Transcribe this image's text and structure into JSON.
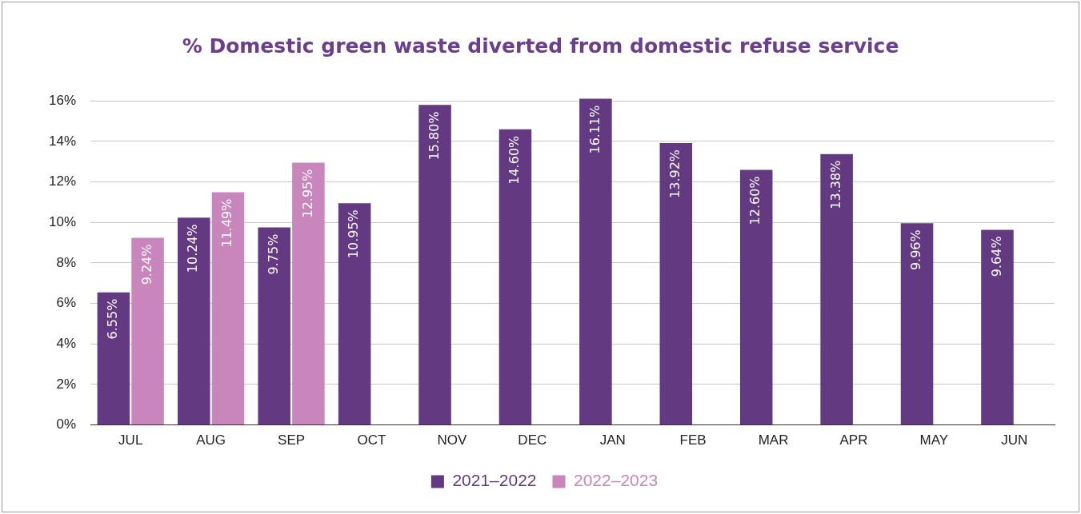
{
  "chart_data": {
    "type": "bar",
    "title": "% Domestic green waste diverted from domestic refuse service",
    "categories": [
      "JUL",
      "AUG",
      "SEP",
      "OCT",
      "NOV",
      "DEC",
      "JAN",
      "FEB",
      "MAR",
      "APR",
      "MAY",
      "JUN"
    ],
    "series": [
      {
        "name": "2021–2022",
        "color": "#633a82",
        "values": [
          6.55,
          10.24,
          9.75,
          10.95,
          15.8,
          14.6,
          16.11,
          13.92,
          12.6,
          13.38,
          9.96,
          9.64
        ],
        "value_labels": [
          "6.55%",
          "10.24%",
          "9.75%",
          "10.95%",
          "15.80%",
          "14.60%",
          "16.11%",
          "13.92%",
          "12.60%",
          "13.38%",
          "9.96%",
          "9.64%"
        ]
      },
      {
        "name": "2022–2023",
        "color": "#c886bc",
        "values": [
          9.24,
          11.49,
          12.95,
          null,
          null,
          null,
          null,
          null,
          null,
          null,
          null,
          null
        ],
        "value_labels": [
          "9.24%",
          "11.49%",
          "12.95%",
          null,
          null,
          null,
          null,
          null,
          null,
          null,
          null,
          null
        ]
      }
    ],
    "ylim": [
      0,
      16.2
    ],
    "yticks": [
      {
        "value": 0,
        "label": "0%"
      },
      {
        "value": 2,
        "label": "2%"
      },
      {
        "value": 4,
        "label": "4%"
      },
      {
        "value": 6,
        "label": "6%"
      },
      {
        "value": 8,
        "label": "8%"
      },
      {
        "value": 10,
        "label": "10%"
      },
      {
        "value": 12,
        "label": "12%"
      },
      {
        "value": 14,
        "label": "14%"
      },
      {
        "value": 16,
        "label": "16%"
      }
    ],
    "grid": "y",
    "legend": "bottom"
  }
}
